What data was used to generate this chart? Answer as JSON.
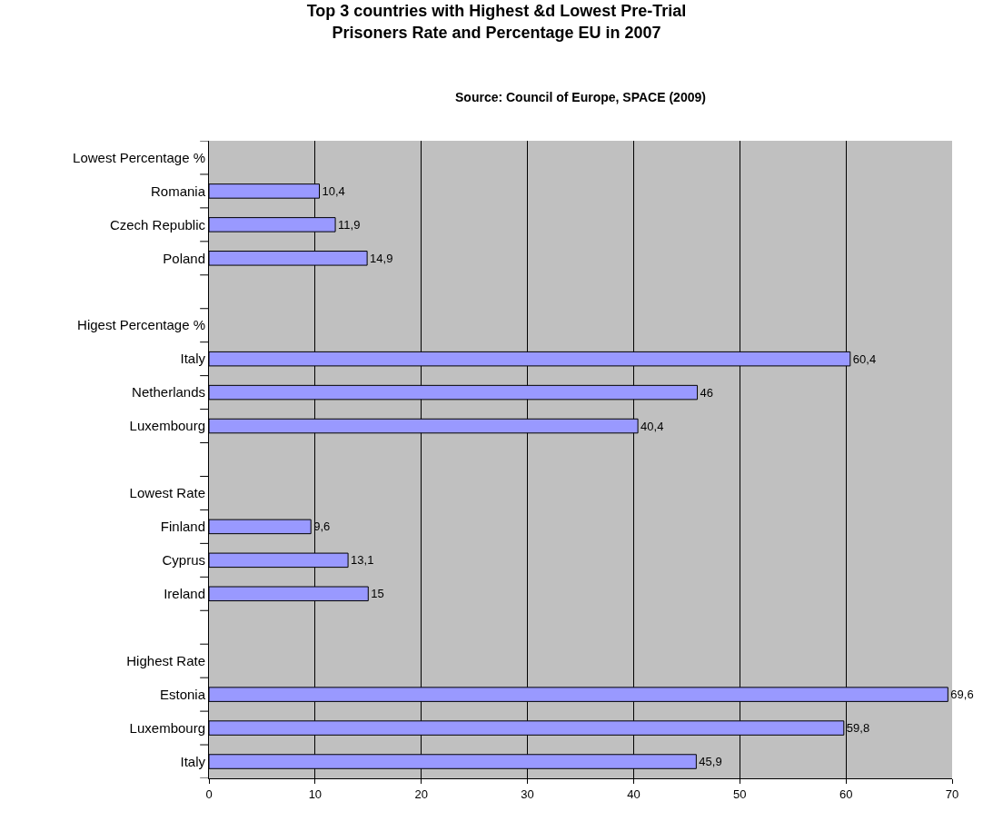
{
  "chart_data": {
    "type": "bar",
    "orientation": "horizontal",
    "title": "Top 3 countries with Highest &d Lowest Pre-Trial Prisoners Rate and Percentage EU in 2007",
    "subtitle": "Source: Council of Europe, SPACE (2009)",
    "categories": [
      "Lowest Percentage %",
      "Romania",
      "Czech Republic",
      "Poland",
      null,
      "Higest Percentage %",
      "Italy",
      "Netherlands",
      "Luxembourg",
      null,
      "Lowest Rate",
      "Finland",
      "Cyprus",
      "Ireland",
      null,
      "Highest Rate",
      "Estonia",
      "Luxembourg",
      "Italy"
    ],
    "values": [
      null,
      10.4,
      11.9,
      14.9,
      null,
      null,
      60.4,
      46,
      40.4,
      null,
      null,
      9.6,
      13.1,
      15,
      null,
      null,
      69.6,
      59.8,
      45.9
    ],
    "value_labels": [
      null,
      "10,4",
      "11,9",
      "14,9",
      null,
      null,
      "60,4",
      "46",
      "40,4",
      null,
      null,
      "9,6",
      "13,1",
      "15",
      null,
      null,
      "69,6",
      "59,8",
      "45,9"
    ],
    "color": "#9999ff",
    "xlim": [
      0,
      70
    ],
    "xticks": [
      0,
      10,
      20,
      30,
      40,
      50,
      60,
      70
    ],
    "grid": "x"
  }
}
